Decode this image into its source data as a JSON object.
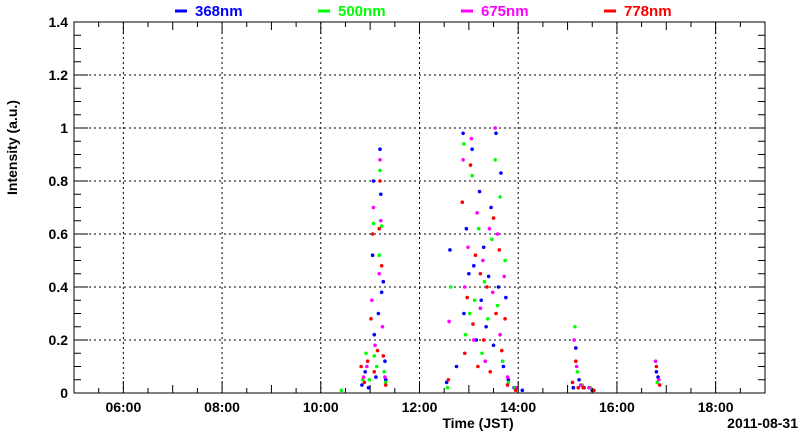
{
  "chart_data": {
    "type": "scatter",
    "title": "",
    "xlabel": "Time (JST)",
    "ylabel": "Intensity (a.u.)",
    "date_label": "2011-08-31",
    "xlim": [
      "05:00",
      "19:00"
    ],
    "ylim": [
      0,
      1.4
    ],
    "x_ticks": [
      "06:00",
      "08:00",
      "10:00",
      "12:00",
      "14:00",
      "16:00",
      "18:00"
    ],
    "y_ticks": [
      "0",
      "0.2",
      "0.4",
      "0.6",
      "0.8",
      "1",
      "1.2",
      "1.4"
    ],
    "grid": true,
    "legend_position": "top",
    "series": [
      {
        "name": "368nm",
        "color": "#0000ff",
        "points": [
          [
            "10:50",
            0.03
          ],
          [
            "10:54",
            0.08
          ],
          [
            "10:58",
            0.02
          ],
          [
            "11:03",
            0.52
          ],
          [
            "11:04",
            0.8
          ],
          [
            "11:05",
            0.22
          ],
          [
            "11:07",
            0.06
          ],
          [
            "11:10",
            0.3
          ],
          [
            "11:12",
            0.92
          ],
          [
            "11:13",
            0.75
          ],
          [
            "11:14",
            0.38
          ],
          [
            "11:16",
            0.42
          ],
          [
            "11:18",
            0.12
          ],
          [
            "11:19",
            0.05
          ],
          [
            "12:33",
            0.04
          ],
          [
            "12:37",
            0.54
          ],
          [
            "12:45",
            0.1
          ],
          [
            "12:53",
            0.98
          ],
          [
            "12:54",
            0.3
          ],
          [
            "12:57",
            0.62
          ],
          [
            "13:00",
            0.45
          ],
          [
            "13:04",
            0.92
          ],
          [
            "13:06",
            0.48
          ],
          [
            "13:09",
            0.2
          ],
          [
            "13:13",
            0.76
          ],
          [
            "13:15",
            0.35
          ],
          [
            "13:18",
            0.55
          ],
          [
            "13:21",
            0.25
          ],
          [
            "13:24",
            0.44
          ],
          [
            "13:27",
            0.7
          ],
          [
            "13:30",
            0.18
          ],
          [
            "13:33",
            0.98
          ],
          [
            "13:36",
            0.4
          ],
          [
            "13:39",
            0.83
          ],
          [
            "13:42",
            0.1
          ],
          [
            "13:45",
            0.36
          ],
          [
            "13:48",
            0.05
          ],
          [
            "13:55",
            0.02
          ],
          [
            "14:05",
            0.01
          ],
          [
            "15:07",
            0.02
          ],
          [
            "15:10",
            0.17
          ],
          [
            "15:14",
            0.05
          ],
          [
            "15:20",
            0.02
          ],
          [
            "15:30",
            0.01
          ],
          [
            "16:48",
            0.08
          ],
          [
            "16:50",
            0.06
          ]
        ]
      },
      {
        "name": "500nm",
        "color": "#00ff00",
        "points": [
          [
            "10:25",
            0.01
          ],
          [
            "10:51",
            0.05
          ],
          [
            "10:55",
            0.15
          ],
          [
            "10:59",
            0.05
          ],
          [
            "11:04",
            0.64
          ],
          [
            "11:05",
            0.14
          ],
          [
            "11:08",
            0.1
          ],
          [
            "11:11",
            0.52
          ],
          [
            "11:12",
            0.84
          ],
          [
            "11:14",
            0.63
          ],
          [
            "11:17",
            0.08
          ],
          [
            "11:19",
            0.04
          ],
          [
            "12:34",
            0.02
          ],
          [
            "12:38",
            0.4
          ],
          [
            "12:54",
            0.94
          ],
          [
            "12:56",
            0.22
          ],
          [
            "13:01",
            0.3
          ],
          [
            "13:04",
            0.82
          ],
          [
            "13:07",
            0.35
          ],
          [
            "13:12",
            0.62
          ],
          [
            "13:16",
            0.15
          ],
          [
            "13:19",
            0.42
          ],
          [
            "13:23",
            0.28
          ],
          [
            "13:28",
            0.58
          ],
          [
            "13:32",
            0.88
          ],
          [
            "13:35",
            0.33
          ],
          [
            "13:38",
            0.74
          ],
          [
            "13:41",
            0.12
          ],
          [
            "13:44",
            0.5
          ],
          [
            "13:48",
            0.04
          ],
          [
            "13:56",
            0.02
          ],
          [
            "15:09",
            0.25
          ],
          [
            "15:12",
            0.08
          ],
          [
            "15:18",
            0.03
          ],
          [
            "15:28",
            0.02
          ],
          [
            "16:49",
            0.04
          ]
        ]
      },
      {
        "name": "675nm",
        "color": "#ff00ff",
        "points": [
          [
            "10:52",
            0.06
          ],
          [
            "10:56",
            0.1
          ],
          [
            "11:02",
            0.35
          ],
          [
            "11:04",
            0.7
          ],
          [
            "11:06",
            0.18
          ],
          [
            "11:11",
            0.45
          ],
          [
            "11:12",
            0.88
          ],
          [
            "11:13",
            0.65
          ],
          [
            "11:15",
            0.25
          ],
          [
            "11:18",
            0.06
          ],
          [
            "12:36",
            0.27
          ],
          [
            "12:53",
            0.88
          ],
          [
            "12:55",
            0.4
          ],
          [
            "12:59",
            0.55
          ],
          [
            "13:03",
            0.96
          ],
          [
            "13:06",
            0.2
          ],
          [
            "13:10",
            0.68
          ],
          [
            "13:14",
            0.32
          ],
          [
            "13:17",
            0.5
          ],
          [
            "13:20",
            0.12
          ],
          [
            "13:25",
            0.62
          ],
          [
            "13:29",
            0.38
          ],
          [
            "13:32",
            1.0
          ],
          [
            "13:35",
            0.6
          ],
          [
            "13:38",
            0.22
          ],
          [
            "13:43",
            0.44
          ],
          [
            "13:47",
            0.06
          ],
          [
            "13:58",
            0.02
          ],
          [
            "15:08",
            0.2
          ],
          [
            "15:11",
            0.1
          ],
          [
            "15:16",
            0.03
          ],
          [
            "15:26",
            0.02
          ],
          [
            "16:47",
            0.12
          ],
          [
            "16:51",
            0.05
          ]
        ]
      },
      {
        "name": "778nm",
        "color": "#ff0000",
        "points": [
          [
            "10:49",
            0.1
          ],
          [
            "10:53",
            0.04
          ],
          [
            "10:57",
            0.12
          ],
          [
            "11:01",
            0.28
          ],
          [
            "11:03",
            0.6
          ],
          [
            "11:05",
            0.08
          ],
          [
            "11:09",
            0.16
          ],
          [
            "11:11",
            0.62
          ],
          [
            "11:12",
            0.8
          ],
          [
            "11:14",
            0.48
          ],
          [
            "11:16",
            0.14
          ],
          [
            "11:19",
            0.03
          ],
          [
            "12:35",
            0.05
          ],
          [
            "12:52",
            0.72
          ],
          [
            "12:55",
            0.15
          ],
          [
            "12:58",
            0.36
          ],
          [
            "13:02",
            0.86
          ],
          [
            "13:05",
            0.26
          ],
          [
            "13:08",
            0.52
          ],
          [
            "13:11",
            0.1
          ],
          [
            "13:14",
            0.45
          ],
          [
            "13:18",
            0.2
          ],
          [
            "13:22",
            0.4
          ],
          [
            "13:26",
            0.08
          ],
          [
            "13:30",
            0.66
          ],
          [
            "13:33",
            0.3
          ],
          [
            "13:37",
            0.54
          ],
          [
            "13:40",
            0.16
          ],
          [
            "13:44",
            0.28
          ],
          [
            "13:47",
            0.03
          ],
          [
            "13:57",
            0.01
          ],
          [
            "15:06",
            0.04
          ],
          [
            "15:10",
            0.12
          ],
          [
            "15:13",
            0.02
          ],
          [
            "15:19",
            0.02
          ],
          [
            "15:32",
            0.01
          ],
          [
            "16:48",
            0.1
          ],
          [
            "16:52",
            0.03
          ]
        ]
      }
    ]
  }
}
